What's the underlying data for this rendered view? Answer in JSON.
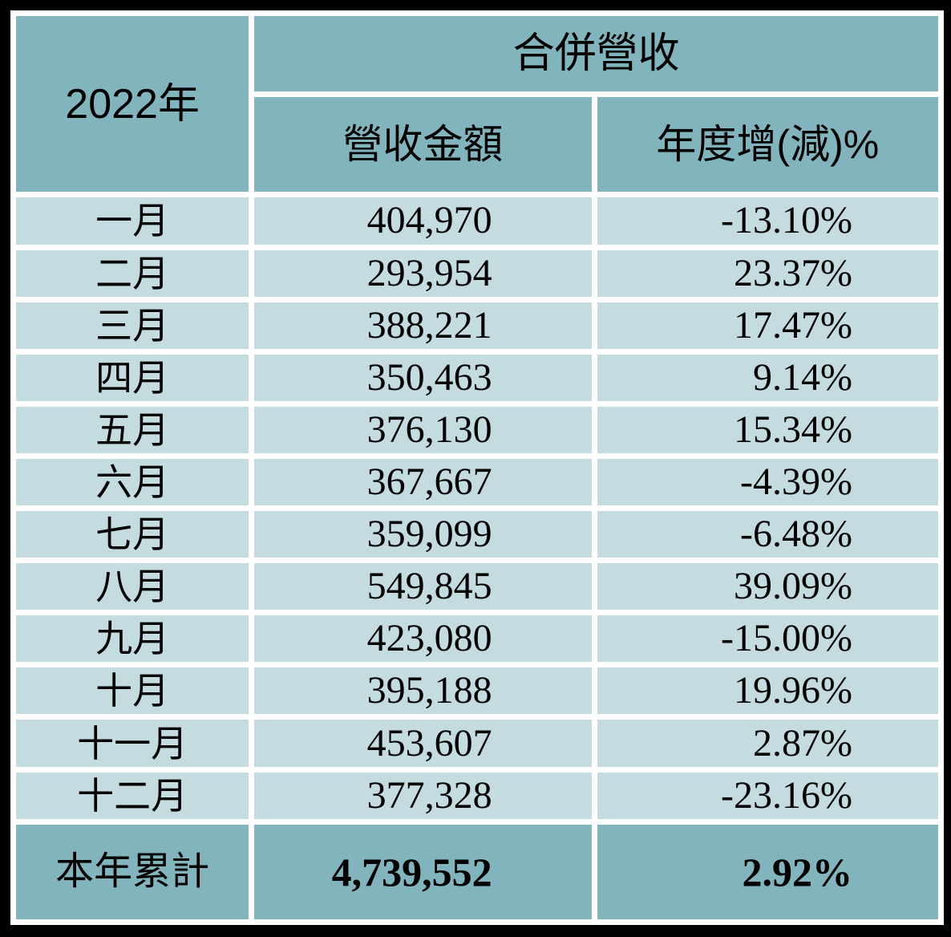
{
  "table": {
    "year_header": "2022年",
    "group_header": "合併營收",
    "col_headers": {
      "amount": "營收金額",
      "yoy": "年度增(減)%"
    },
    "rows": [
      {
        "month": "一月",
        "amount": "404,970",
        "yoy": "-13.10%"
      },
      {
        "month": "二月",
        "amount": "293,954",
        "yoy": "23.37%"
      },
      {
        "month": "三月",
        "amount": "388,221",
        "yoy": "17.47%"
      },
      {
        "month": "四月",
        "amount": "350,463",
        "yoy": "9.14%"
      },
      {
        "month": "五月",
        "amount": "376,130",
        "yoy": "15.34%"
      },
      {
        "month": "六月",
        "amount": "367,667",
        "yoy": "-4.39%"
      },
      {
        "month": "七月",
        "amount": "359,099",
        "yoy": "-6.48%"
      },
      {
        "month": "八月",
        "amount": "549,845",
        "yoy": "39.09%"
      },
      {
        "month": "九月",
        "amount": "423,080",
        "yoy": "-15.00%"
      },
      {
        "month": "十月",
        "amount": "395,188",
        "yoy": "19.96%"
      },
      {
        "month": "十一月",
        "amount": "453,607",
        "yoy": "2.87%"
      },
      {
        "month": "十二月",
        "amount": "377,328",
        "yoy": "-23.16%"
      }
    ],
    "summary": {
      "label": "本年累計",
      "amount": "4,739,552",
      "yoy": "2.92%"
    }
  },
  "colors": {
    "header_background": "#81b4bd",
    "row_background": "#c4dbdf",
    "separator": "#ffffff",
    "frame": "#000000",
    "text": "#000000"
  },
  "chart_data": {
    "type": "table",
    "title": "2022年 合併營收",
    "columns": [
      "2022年",
      "營收金額",
      "年度增(減)%"
    ],
    "months": [
      "一月",
      "二月",
      "三月",
      "四月",
      "五月",
      "六月",
      "七月",
      "八月",
      "九月",
      "十月",
      "十一月",
      "十二月"
    ],
    "revenue_amounts": [
      404970,
      293954,
      388221,
      350463,
      376130,
      367667,
      359099,
      549845,
      423080,
      395188,
      453607,
      377328
    ],
    "yoy_change_percent": [
      -13.1,
      23.37,
      17.47,
      9.14,
      15.34,
      -4.39,
      -6.48,
      39.09,
      -15.0,
      19.96,
      2.87,
      -23.16
    ],
    "total_label": "本年累計",
    "total_revenue": 4739552,
    "total_yoy_percent": 2.92
  }
}
